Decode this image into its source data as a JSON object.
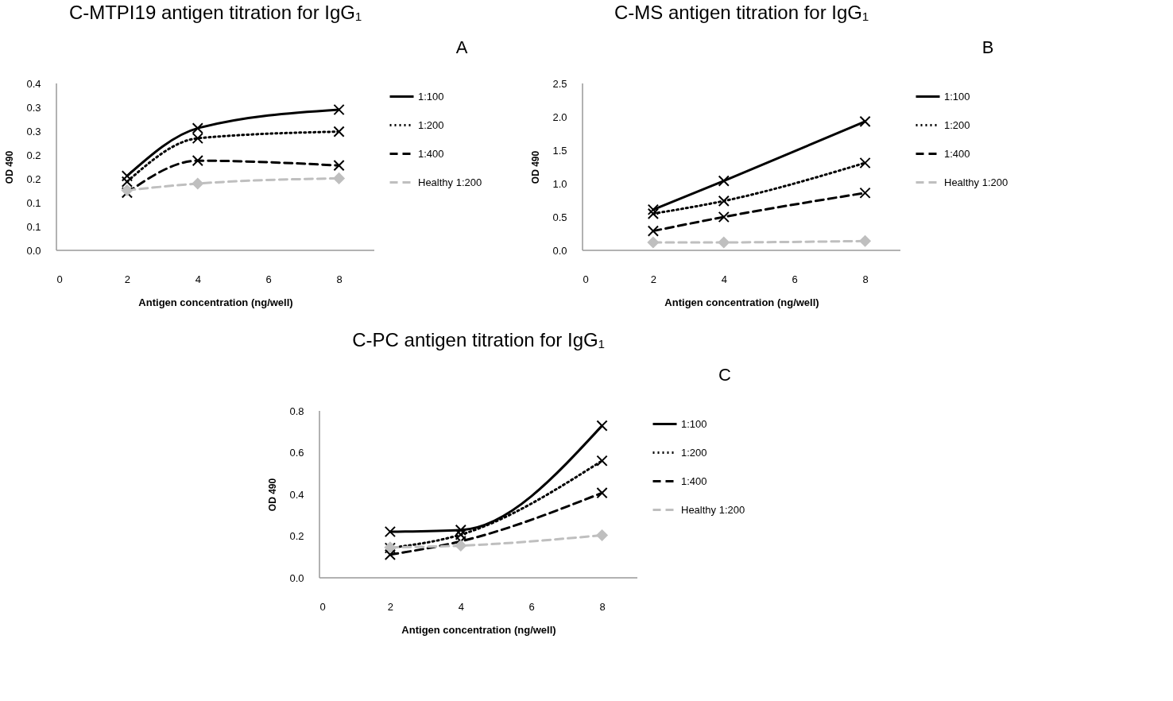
{
  "chart_data": [
    {
      "type": "line",
      "title": "C-MTPI19 antigen titration for IgG₁",
      "xlabel": "Antigen concentration (ng/well)",
      "ylabel": "OD 490",
      "annotations": [
        "A"
      ],
      "x": [
        2,
        4,
        8
      ],
      "xlim": [
        0,
        9
      ],
      "xticks": [
        0,
        2,
        4,
        6,
        8
      ],
      "ylim": [
        0,
        0.35
      ],
      "yticks": [
        {
          "value": 0,
          "label": "0.0"
        },
        {
          "value": 0.05,
          "label": "0.1"
        },
        {
          "value": 0.1,
          "label": "0.1"
        },
        {
          "value": 0.15,
          "label": "0.2"
        },
        {
          "value": 0.2,
          "label": "0.2"
        },
        {
          "value": 0.25,
          "label": "0.3"
        },
        {
          "value": 0.3,
          "label": "0.3"
        },
        {
          "value": 0.35,
          "label": "0.4"
        }
      ],
      "grid": false,
      "legend": "right",
      "series": [
        {
          "name": "1:100",
          "color": "#000000",
          "marker": "cross",
          "line_style": "solid",
          "values": [
            0.156,
            0.256,
            0.295
          ]
        },
        {
          "name": "1:200",
          "color": "#000000",
          "marker": "cross",
          "line_style": "dotted",
          "values": [
            0.144,
            0.235,
            0.249
          ]
        },
        {
          "name": "1:400",
          "color": "#000000",
          "marker": "cross",
          "line_style": "dashed",
          "values": [
            0.121,
            0.188,
            0.178
          ]
        },
        {
          "name": "Healthy 1:200",
          "color": "#bfbfbf",
          "marker": "diamond",
          "line_style": "dashed",
          "values": [
            0.126,
            0.14,
            0.151
          ]
        }
      ]
    },
    {
      "type": "line",
      "title": "C-MS antigen titration for IgG₁",
      "xlabel": "Antigen concentration (ng/well)",
      "ylabel": "OD 490",
      "annotations": [
        "B"
      ],
      "x": [
        2,
        4,
        8
      ],
      "xlim": [
        0,
        9
      ],
      "xticks": [
        0,
        2,
        4,
        6,
        8
      ],
      "ylim": [
        0,
        2.5
      ],
      "yticks": [
        {
          "value": 0,
          "label": "0.0"
        },
        {
          "value": 0.5,
          "label": "0.5"
        },
        {
          "value": 1,
          "label": "1.0"
        },
        {
          "value": 1.5,
          "label": "1.5"
        },
        {
          "value": 2,
          "label": "2.0"
        },
        {
          "value": 2.5,
          "label": "2.5"
        }
      ],
      "grid": false,
      "legend": "right",
      "series": [
        {
          "name": "1:100",
          "color": "#000000",
          "marker": "cross",
          "line_style": "solid",
          "values": [
            0.61,
            1.04,
            1.93
          ]
        },
        {
          "name": "1:200",
          "color": "#000000",
          "marker": "cross",
          "line_style": "dotted",
          "values": [
            0.55,
            0.74,
            1.31
          ]
        },
        {
          "name": "1:400",
          "color": "#000000",
          "marker": "cross",
          "line_style": "dashed",
          "values": [
            0.29,
            0.5,
            0.86
          ]
        },
        {
          "name": "Healthy 1:200",
          "color": "#bfbfbf",
          "marker": "diamond",
          "line_style": "dashed",
          "values": [
            0.12,
            0.12,
            0.14
          ]
        }
      ]
    },
    {
      "type": "line",
      "title": "C-PC antigen titration for IgG₁",
      "xlabel": "Antigen concentration (ng/well)",
      "ylabel": "OD 490",
      "annotations": [
        "C"
      ],
      "x": [
        2,
        4,
        8
      ],
      "xlim": [
        0,
        9
      ],
      "xticks": [
        0,
        2,
        4,
        6,
        8
      ],
      "ylim": [
        0,
        0.8
      ],
      "yticks": [
        {
          "value": 0,
          "label": "0.0"
        },
        {
          "value": 0.2,
          "label": "0.2"
        },
        {
          "value": 0.4,
          "label": "0.4"
        },
        {
          "value": 0.6,
          "label": "0.6"
        },
        {
          "value": 0.8,
          "label": "0.8"
        }
      ],
      "grid": false,
      "legend": "right",
      "series": [
        {
          "name": "1:100",
          "color": "#000000",
          "marker": "cross",
          "line_style": "solid",
          "values": [
            0.221,
            0.229,
            0.729
          ]
        },
        {
          "name": "1:200",
          "color": "#000000",
          "marker": "cross",
          "line_style": "dotted",
          "values": [
            0.143,
            0.207,
            0.561
          ]
        },
        {
          "name": "1:400",
          "color": "#000000",
          "marker": "cross",
          "line_style": "dashed",
          "values": [
            0.111,
            0.175,
            0.407
          ]
        },
        {
          "name": "Healthy 1:200",
          "color": "#bfbfbf",
          "marker": "diamond",
          "line_style": "dashed",
          "values": [
            0.146,
            0.154,
            0.204
          ]
        }
      ]
    }
  ]
}
